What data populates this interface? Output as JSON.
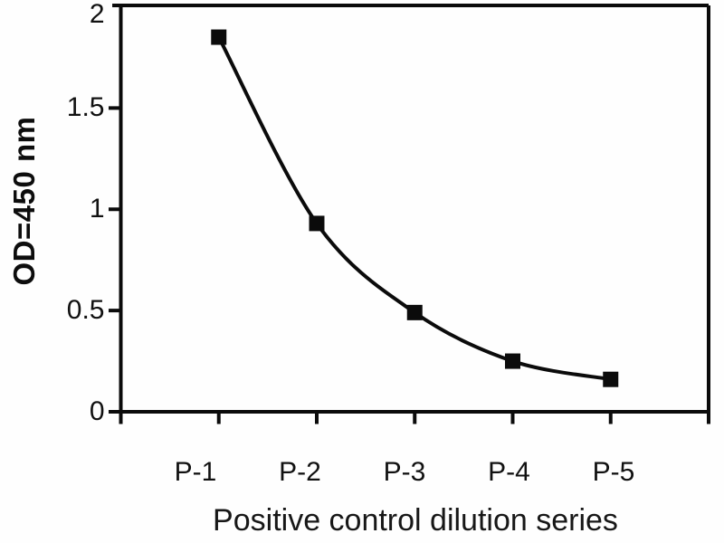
{
  "chart_data": {
    "type": "line",
    "categories": [
      "P-1",
      "P-2",
      "P-3",
      "P-4",
      "P-5"
    ],
    "values": [
      1.85,
      0.93,
      0.49,
      0.25,
      0.16
    ],
    "series": [
      {
        "name": "Positive control",
        "values": [
          1.85,
          0.93,
          0.49,
          0.25,
          0.16
        ]
      }
    ],
    "title": "",
    "xlabel": "Positive control dilution series",
    "ylabel": "OD=450 nm",
    "ylim": [
      0,
      2
    ],
    "yticks": [
      0,
      0.5,
      1,
      1.5,
      2
    ],
    "ytick_labels": [
      "0",
      "0.5",
      "1",
      "1.5",
      "2"
    ],
    "grid": false,
    "legend_position": "none",
    "smooth_line": true,
    "marker": "filled-square",
    "line_color": "#0b0b0b",
    "marker_color": "#0b0b0b",
    "axis_color": "#0b0b0b",
    "plot_border": "box",
    "background_color": "#fefefe"
  }
}
